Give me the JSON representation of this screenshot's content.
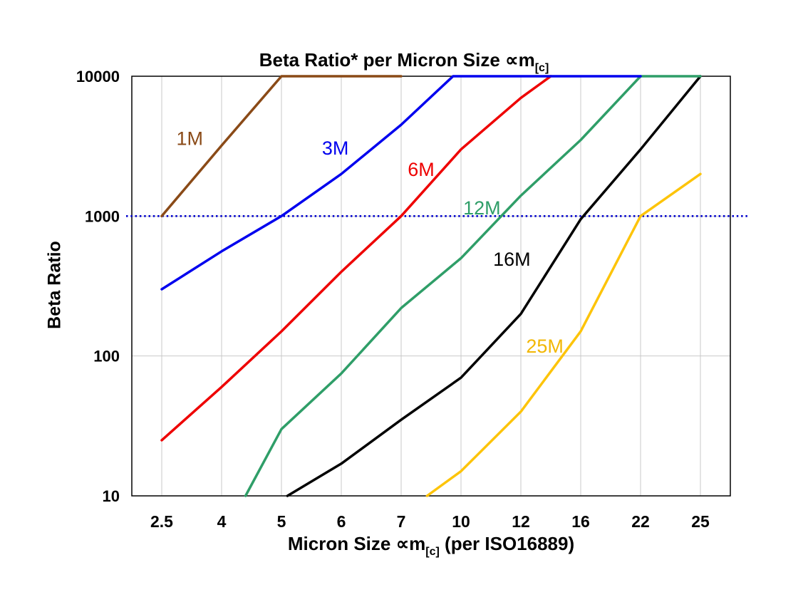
{
  "title": {
    "main": "Beta Ratio* per Micron Size ∝m",
    "sub": "[c]"
  },
  "axes": {
    "y_label": "Beta Ratio",
    "x_label_main": "Micron Size ∝m",
    "x_label_sub": "[c]",
    "x_label_suffix": " (per ISO16889)"
  },
  "chart_data": {
    "type": "line",
    "title": "Beta Ratio* per Micron Size ∝m[c]",
    "xlabel": "Micron Size ∝m[c] (per ISO16889)",
    "ylabel": "Beta Ratio",
    "x_scale": "categorical",
    "y_scale": "log",
    "x_categories": [
      2.5,
      4,
      5,
      6,
      7,
      10,
      12,
      16,
      22,
      25
    ],
    "x_tick_labels": [
      "2.5",
      "4",
      "5",
      "6",
      "7",
      "10",
      "12",
      "16",
      "22",
      "25"
    ],
    "y_ticks": [
      10,
      100,
      1000,
      10000
    ],
    "y_range": [
      10,
      10000
    ],
    "grid": {
      "vertical": true,
      "horizontal_at": [
        100,
        1000
      ],
      "color": "#c9c9c9"
    },
    "reference_line": {
      "y": 1000,
      "color": "#0000cc",
      "style": "dotted"
    },
    "series": [
      {
        "name": "25M",
        "color": "#fdc40a",
        "points": [
          [
            8.3,
            10
          ],
          [
            10,
            15
          ],
          [
            12,
            40
          ],
          [
            16,
            150
          ],
          [
            22,
            1000
          ],
          [
            25,
            2000
          ]
        ]
      },
      {
        "name": "16M",
        "color": "#000000",
        "points": [
          [
            5.1,
            10
          ],
          [
            6,
            17
          ],
          [
            7,
            35
          ],
          [
            10,
            70
          ],
          [
            12,
            200
          ],
          [
            16,
            950
          ],
          [
            22,
            3000
          ],
          [
            25,
            10000
          ]
        ]
      },
      {
        "name": "12M",
        "color": "#2f9e68",
        "points": [
          [
            4.4,
            10
          ],
          [
            5,
            30
          ],
          [
            6,
            75
          ],
          [
            7,
            220
          ],
          [
            10,
            500
          ],
          [
            12,
            1400
          ],
          [
            16,
            3500
          ],
          [
            22,
            10000
          ],
          [
            25,
            10000
          ]
        ]
      },
      {
        "name": "6M",
        "color": "#ee0000",
        "points": [
          [
            2.5,
            25
          ],
          [
            4,
            60
          ],
          [
            5,
            150
          ],
          [
            6,
            400
          ],
          [
            7,
            1000
          ],
          [
            10,
            3000
          ],
          [
            12,
            7000
          ],
          [
            14,
            10000
          ]
        ]
      },
      {
        "name": "3M",
        "color": "#0000ee",
        "points": [
          [
            2.5,
            300
          ],
          [
            4,
            560
          ],
          [
            5,
            1000
          ],
          [
            6,
            2000
          ],
          [
            7,
            4500
          ],
          [
            9.6,
            10000
          ],
          [
            22,
            10000
          ]
        ]
      },
      {
        "name": "1M",
        "color": "#8a4a17",
        "points": [
          [
            2.5,
            1000
          ],
          [
            4,
            3200
          ],
          [
            5,
            10000
          ],
          [
            7,
            10000
          ]
        ]
      }
    ],
    "annotations": [
      {
        "text": "1M",
        "color": "#8a4a17",
        "x": 3.2,
        "y": 3500
      },
      {
        "text": "3M",
        "color": "#0000ee",
        "x": 5.9,
        "y": 3000
      },
      {
        "text": "6M",
        "color": "#ee0000",
        "x": 8.0,
        "y": 2100
      },
      {
        "text": "12M",
        "color": "#2f9e68",
        "x": 10.7,
        "y": 1120
      },
      {
        "text": "16M",
        "color": "#000000",
        "x": 11.7,
        "y": 480
      },
      {
        "text": "25M",
        "color": "#f2b705",
        "x": 13.6,
        "y": 115
      }
    ]
  }
}
